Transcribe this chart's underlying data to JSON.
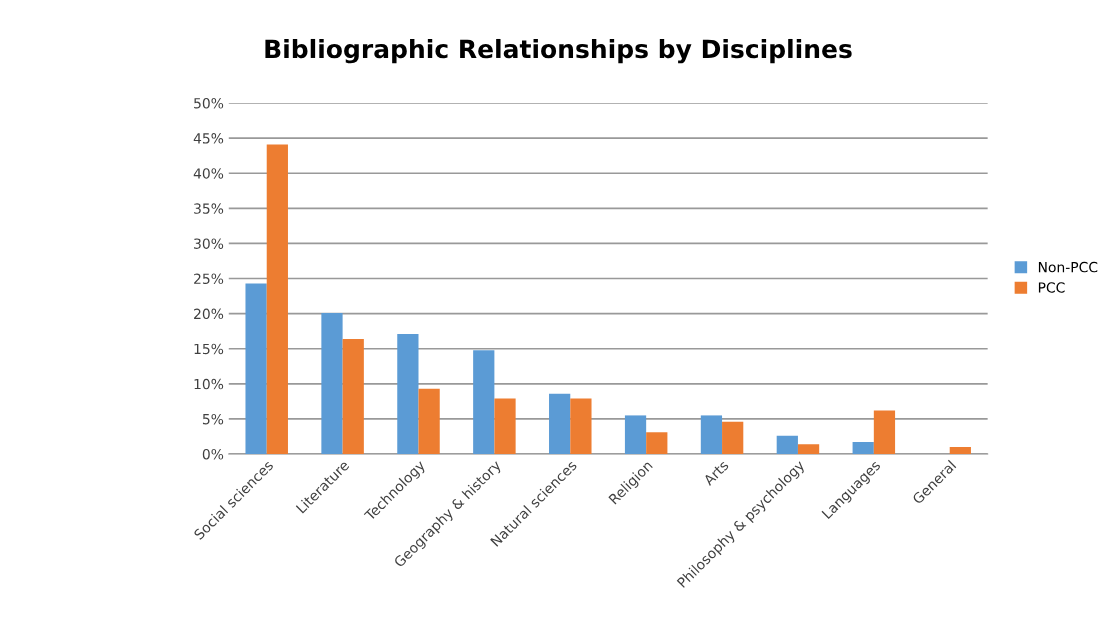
{
  "chart_data": {
    "type": "bar",
    "title": "Bibliographic Relationships by Disciplines",
    "categories": [
      "Social sciences",
      "Literature",
      "Technology",
      "Geography & history",
      "Natural sciences",
      "Religion",
      "Arts",
      "Philosophy & psychology",
      "Languages",
      "General"
    ],
    "series": [
      {
        "name": "Non-PCC",
        "color": "#5b9bd5",
        "values": [
          24.3,
          20.1,
          17.1,
          14.8,
          8.6,
          5.5,
          5.5,
          2.6,
          1.7,
          0
        ]
      },
      {
        "name": "PCC",
        "color": "#ed7d31",
        "values": [
          44.1,
          16.4,
          9.3,
          7.9,
          7.9,
          3.1,
          4.6,
          1.4,
          6.2,
          1.0
        ]
      }
    ],
    "ylim": [
      0,
      50
    ],
    "yticks": [
      {
        "value": 0,
        "label": "0%"
      },
      {
        "value": 5,
        "label": "5%"
      },
      {
        "value": 10,
        "label": "10%"
      },
      {
        "value": 15,
        "label": "15%"
      },
      {
        "value": 20,
        "label": "20%"
      },
      {
        "value": 25,
        "label": "25%"
      },
      {
        "value": 30,
        "label": "30%"
      },
      {
        "value": 35,
        "label": "35%"
      },
      {
        "value": 40,
        "label": "40%"
      },
      {
        "value": 45,
        "label": "45%"
      },
      {
        "value": 50,
        "label": "50%"
      }
    ],
    "grid": "y",
    "legend": "right"
  }
}
